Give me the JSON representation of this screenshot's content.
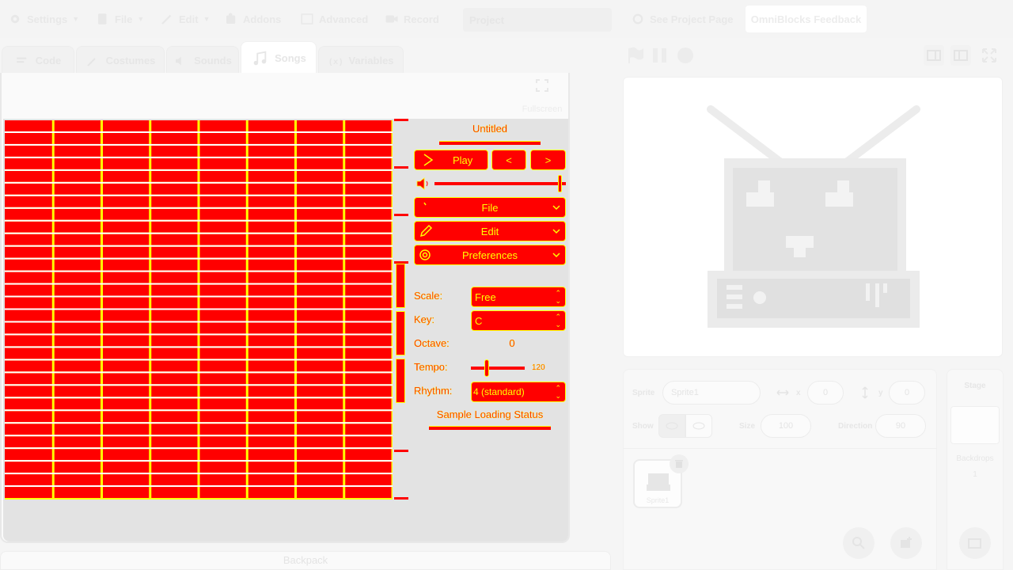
{
  "menubar": {
    "settings_label": "Settings",
    "file_label": "File",
    "edit_label": "Edit",
    "addons_label": "Addons",
    "advanced_label": "Advanced",
    "record_label": "Record",
    "project_title_value": "Project",
    "see_project_page_label": "See Project Page",
    "feedback_label": "OmniBlocks Feedback"
  },
  "tabs": {
    "code": "Code",
    "costumes": "Costumes",
    "sounds": "Sounds",
    "songs": "Songs",
    "variables": "Variables"
  },
  "editor": {
    "fullscreen_label": "Fullscreen"
  },
  "song_panel": {
    "song_title": "Untitled",
    "play_label": "Play",
    "prev_label": "<",
    "next_label": ">",
    "volume_fraction": 0.97,
    "file_menu_label": "File",
    "edit_menu_label": "Edit",
    "preferences_menu_label": "Preferences",
    "scale_label": "Scale:",
    "scale_value": "Free",
    "key_label": "Key:",
    "key_value": "C",
    "octave_label": "Octave:",
    "octave_value": "0",
    "tempo_label": "Tempo:",
    "tempo_value": "120",
    "tempo_fraction": 0.27,
    "rhythm_label": "Rhythm:",
    "rhythm_value": "4 (standard)",
    "sample_status_label": "Sample Loading Status",
    "colors": {
      "fill": "#ff0000",
      "accent": "#ffff00",
      "panel": "#e3e3e3"
    }
  },
  "sprite_info": {
    "sprite_label": "Sprite",
    "sprite_name": "Sprite1",
    "x_label": "x",
    "x_value": "0",
    "y_label": "y",
    "y_value": "0",
    "show_label": "Show",
    "size_label": "Size",
    "size_value": "100",
    "direction_label": "Direction",
    "direction_value": "90",
    "sprite_thumb_label": "Sprite1"
  },
  "stage_pane": {
    "stage_label": "Stage",
    "backdrops_label": "Backdrops",
    "backdrops_count": "1"
  },
  "backpack_label": "Backpack"
}
